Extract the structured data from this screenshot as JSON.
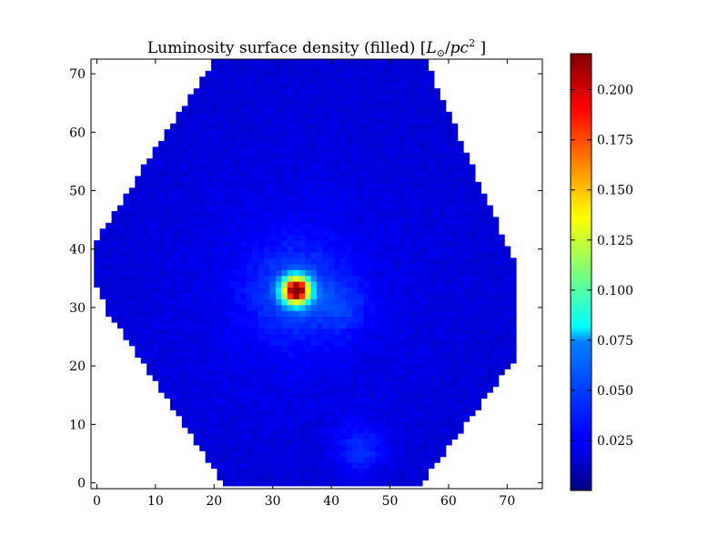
{
  "chart_data": {
    "type": "heatmap",
    "title": "Luminosity surface density (filled) [L☉/pc²]",
    "title_parts": {
      "prefix": "Luminosity surface density (filled) [",
      "L": "L",
      "sun": "⊙",
      "slash": "/",
      "pc": "pc",
      "exp": "2",
      "suffix": " ]"
    },
    "xlim": [
      -1,
      76
    ],
    "ylim": [
      -1,
      72.5
    ],
    "x_ticks": [
      0,
      10,
      20,
      30,
      40,
      50,
      60,
      70
    ],
    "y_ticks": [
      0,
      10,
      20,
      30,
      40,
      50,
      60,
      70
    ],
    "grid_resolution": 1,
    "footprint": {
      "shape": "octagon",
      "vertices": [
        [
          22,
          -0.5
        ],
        [
          55,
          -0.5
        ],
        [
          72,
          22
        ],
        [
          72,
          36
        ],
        [
          56,
          72.5
        ],
        [
          20,
          72.5
        ],
        [
          -0.5,
          41
        ],
        [
          -0.5,
          35
        ],
        [
          2,
          29
        ]
      ]
    },
    "peak": {
      "x": 34,
      "y": 33,
      "value": 0.218
    },
    "background_level": 0.018,
    "secondary_features": [
      {
        "x": 45,
        "y": 6,
        "value": 0.035
      },
      {
        "x": 42,
        "y": 30,
        "value": 0.03
      }
    ],
    "colormap": "jet",
    "colorbar": {
      "vmin": 0.0,
      "vmax": 0.218,
      "ticks": [
        0.025,
        0.05,
        0.075,
        0.1,
        0.125,
        0.15,
        0.175,
        0.2
      ],
      "tick_labels": [
        "0.025",
        "0.050",
        "0.075",
        "0.100",
        "0.125",
        "0.150",
        "0.175",
        "0.200"
      ]
    },
    "grid": false
  }
}
